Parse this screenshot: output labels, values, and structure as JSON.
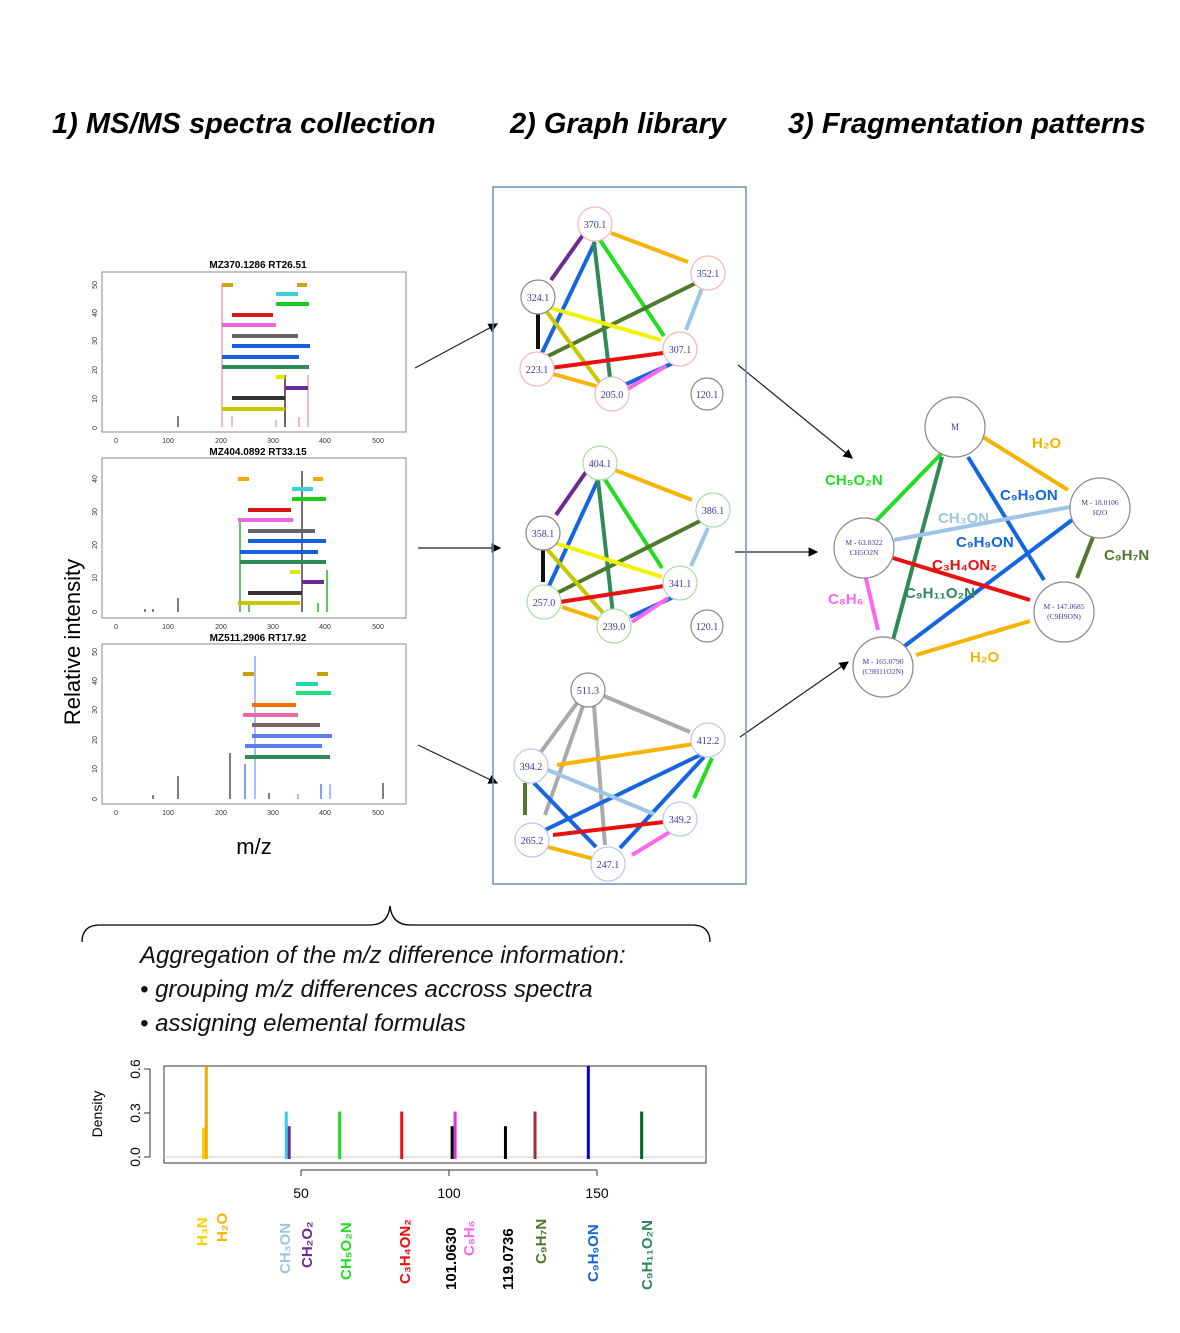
{
  "headings": {
    "col1": "1) MS/MS spectra collection",
    "col2": "2) Graph library",
    "col3": "3) Fragmentation patterns"
  },
  "spectra": {
    "ylabel": "Relative intensity",
    "xlabel": "m/z",
    "panels": [
      {
        "title": "MZ370.1286 RT26.51",
        "yticks": [
          "0",
          "10",
          "20",
          "30",
          "40",
          "50"
        ],
        "xticks": [
          "0",
          "100",
          "200",
          "300",
          "400",
          "500"
        ]
      },
      {
        "title": "MZ404.0892 RT33.15",
        "yticks": [
          "0",
          "10",
          "20",
          "30",
          "40"
        ],
        "xticks": [
          "0",
          "100",
          "200",
          "300",
          "400",
          "500"
        ]
      },
      {
        "title": "MZ511.2906 RT17.92",
        "yticks": [
          "0",
          "10",
          "20",
          "30",
          "40",
          "50"
        ],
        "xticks": [
          "0",
          "100",
          "200",
          "300",
          "400",
          "500"
        ]
      }
    ]
  },
  "graphs": [
    {
      "nodes": [
        "370.1",
        "352.1",
        "324.1",
        "307.1",
        "223.1",
        "205.0",
        "120.1"
      ],
      "border": "#f4b6b6"
    },
    {
      "nodes": [
        "404.1",
        "386.1",
        "358.1",
        "341.1",
        "257.0",
        "239.0",
        "120.1"
      ],
      "border": "#a9dca9"
    },
    {
      "nodes": [
        "511.3",
        "412.2",
        "394.2",
        "349.2",
        "265.2",
        "247.1"
      ],
      "border": "#b8c8ee"
    }
  ],
  "pattern": {
    "nodes": [
      {
        "id": "M",
        "lines": [
          "M"
        ]
      },
      {
        "id": "n18",
        "lines": [
          "M - 18.0106",
          "H2O"
        ]
      },
      {
        "id": "n63",
        "lines": [
          "M - 63.0322",
          "CH5O2N"
        ]
      },
      {
        "id": "n147",
        "lines": [
          "M - 147.0685",
          "(C9H9ON)"
        ]
      },
      {
        "id": "n165",
        "lines": [
          "M - 165.0790",
          "(C9H11O2N)"
        ]
      }
    ],
    "edge_labels": [
      {
        "text": "H₂O",
        "color": "#f6b400"
      },
      {
        "text": "CH₅O₂N",
        "color": "#22dd22"
      },
      {
        "text": "C₉H₉ON",
        "color": "#1565e0"
      },
      {
        "text": "CH₃ON",
        "color": "#9ec4e6"
      },
      {
        "text": "C₉H₉ON",
        "color": "#1565e0"
      },
      {
        "text": "C₃H₄ON₂",
        "color": "#e81010"
      },
      {
        "text": "C₉H₇N",
        "color": "#4f7a2c"
      },
      {
        "text": "C₉H₁₁O₂N",
        "color": "#2e8b57"
      },
      {
        "text": "C₈H₆",
        "color": "#ff66ee"
      },
      {
        "text": "H₂O",
        "color": "#f6b400"
      }
    ]
  },
  "aggregation": {
    "title": "Aggregation of the m/z difference information:",
    "bullets": [
      "• grouping m/z differences accross spectra",
      "• assigning elemental formulas"
    ]
  },
  "density_chart": {
    "ylabel": "Density",
    "yticks": [
      "0.0",
      "0.3",
      "0.6"
    ],
    "xticks": [
      "50",
      "100",
      "150"
    ]
  },
  "chart_data": {
    "type": "bar",
    "ylabel": "Density",
    "xlim": [
      0,
      190
    ],
    "ylim": [
      0,
      0.65
    ],
    "peaks": [
      {
        "x": 17.03,
        "y": 0.2,
        "label": "H₃N",
        "color": "#f5d000"
      },
      {
        "x": 18.01,
        "y": 0.62,
        "label": "H₂O",
        "color": "#f6a800"
      },
      {
        "x": 45.02,
        "y": 0.31,
        "label": "CH₃ON",
        "color": "#33ccee"
      },
      {
        "x": 46.01,
        "y": 0.21,
        "label": "CH₂O₂",
        "color": "#6b2c91"
      },
      {
        "x": 63.03,
        "y": 0.31,
        "label": "CH₅O₂N",
        "color": "#22dd22"
      },
      {
        "x": 84.03,
        "y": 0.31,
        "label": "C₃H₄ON₂",
        "color": "#e81010"
      },
      {
        "x": 101.063,
        "y": 0.21,
        "label": "101.0630",
        "color": "#000000"
      },
      {
        "x": 102.05,
        "y": 0.31,
        "label": "C₈H₆",
        "color": "#dd33dd"
      },
      {
        "x": 119.0736,
        "y": 0.21,
        "label": "119.0736",
        "color": "#000000"
      },
      {
        "x": 129.06,
        "y": 0.31,
        "label": "C₉H₇N",
        "color": "#a03030"
      },
      {
        "x": 147.07,
        "y": 0.62,
        "label": "C₉H₉ON",
        "color": "#0000dd"
      },
      {
        "x": 165.08,
        "y": 0.31,
        "label": "C₉H₁₁O₂N",
        "color": "#006622"
      }
    ],
    "xticks": [
      50,
      100,
      150
    ],
    "yticks": [
      0.0,
      0.3,
      0.6
    ]
  },
  "formula_labels": [
    {
      "text": "H₃N",
      "color": "#f5d000"
    },
    {
      "text": "H₂O",
      "color": "#f6b400"
    },
    {
      "text": "CH₃ON",
      "color": "#9ec4e6"
    },
    {
      "text": "CH₂O₂",
      "color": "#6b2c91"
    },
    {
      "text": "CH₅O₂N",
      "color": "#22dd22"
    },
    {
      "text": "C₃H₄ON₂",
      "color": "#e81010"
    },
    {
      "text": "101.0630",
      "color": "#000000"
    },
    {
      "text": "C₈H₆",
      "color": "#ff66ee"
    },
    {
      "text": "119.0736",
      "color": "#000000"
    },
    {
      "text": "C₉H₇N",
      "color": "#4f7a2c"
    },
    {
      "text": "C₉H₉ON",
      "color": "#1565e0"
    },
    {
      "text": "C₉H₁₁O₂N",
      "color": "#2e8b57"
    }
  ]
}
